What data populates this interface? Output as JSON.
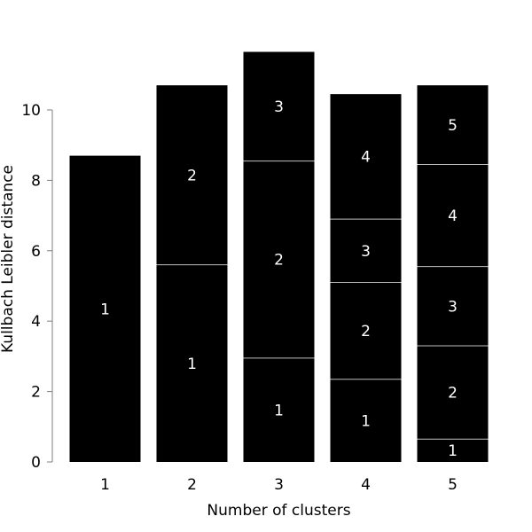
{
  "chart_data": {
    "type": "bar",
    "stacked": true,
    "title": "",
    "xlabel": "Number of clusters",
    "ylabel": "Kullbach Leibler distance",
    "categories": [
      "1",
      "2",
      "3",
      "4",
      "5"
    ],
    "ylim": [
      0,
      10
    ],
    "yticks": [
      0,
      2,
      4,
      6,
      8,
      10
    ],
    "grid": false,
    "legend": "none",
    "bar_color": "#000000",
    "separator_color": "#bfbfbf",
    "segment_label_color": "#ffffff",
    "axis_color": "#7f7f7f",
    "stacks": [
      {
        "category": "1",
        "segments": [
          {
            "label": "1",
            "value": 8.7
          }
        ]
      },
      {
        "category": "2",
        "segments": [
          {
            "label": "1",
            "value": 5.6
          },
          {
            "label": "2",
            "value": 5.1
          }
        ]
      },
      {
        "category": "3",
        "segments": [
          {
            "label": "1",
            "value": 2.95
          },
          {
            "label": "2",
            "value": 5.6
          },
          {
            "label": "3",
            "value": 3.1
          }
        ]
      },
      {
        "category": "4",
        "segments": [
          {
            "label": "1",
            "value": 2.35
          },
          {
            "label": "2",
            "value": 2.75
          },
          {
            "label": "3",
            "value": 1.8
          },
          {
            "label": "4",
            "value": 3.55
          }
        ]
      },
      {
        "category": "5",
        "segments": [
          {
            "label": "1",
            "value": 0.65
          },
          {
            "label": "2",
            "value": 2.65
          },
          {
            "label": "3",
            "value": 2.25
          },
          {
            "label": "4",
            "value": 2.9
          },
          {
            "label": "5",
            "value": 2.25
          }
        ]
      }
    ]
  }
}
